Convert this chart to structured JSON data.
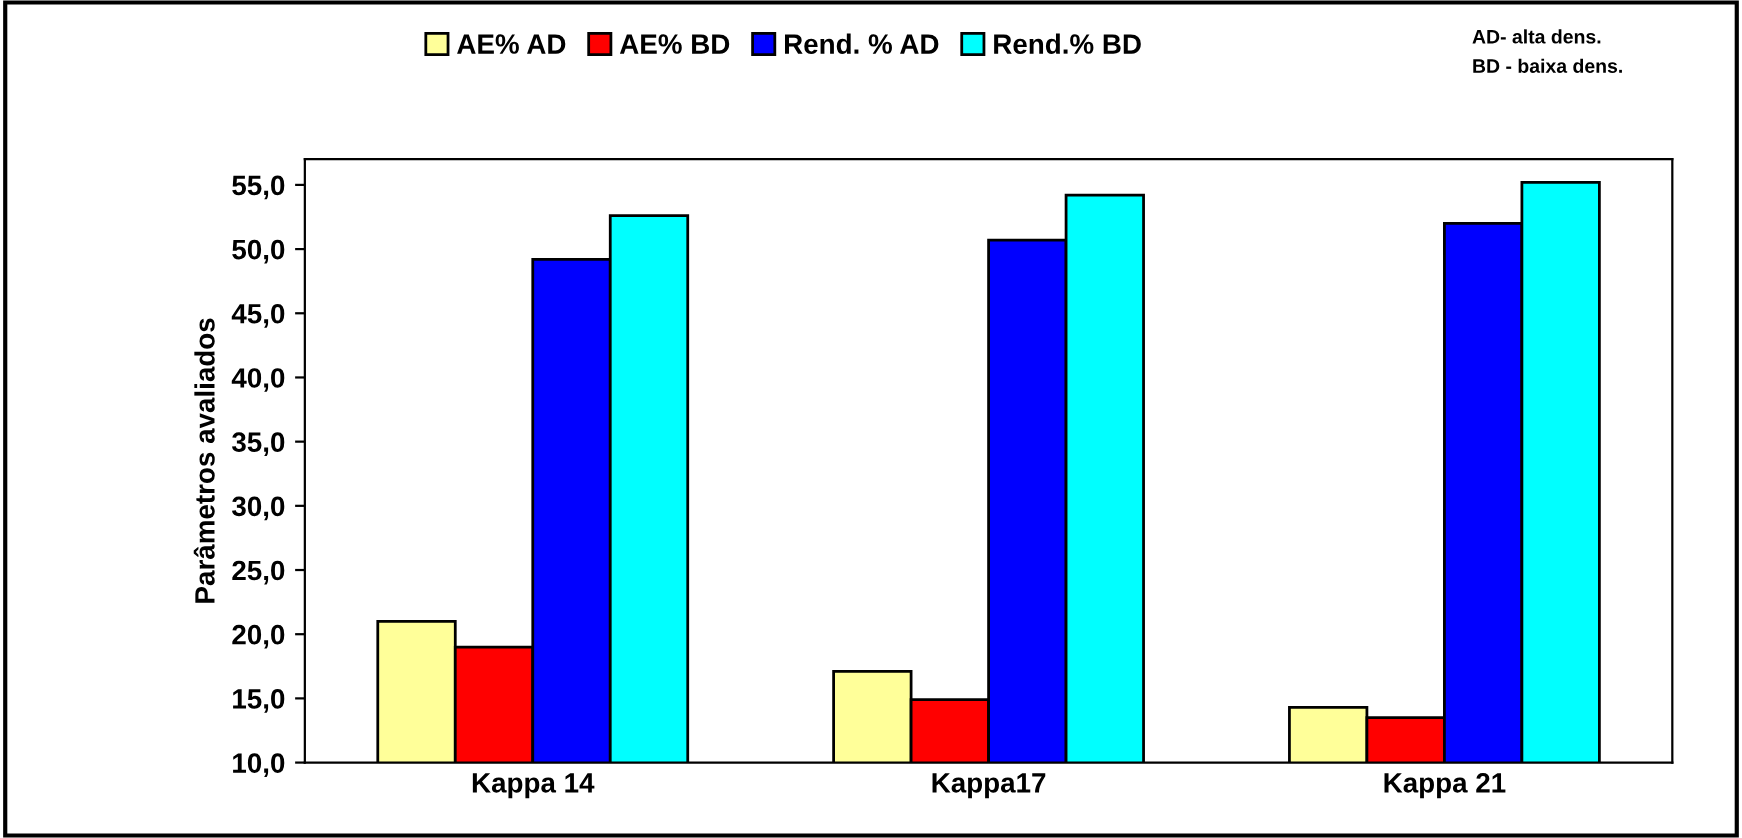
{
  "chart_data": {
    "type": "bar",
    "ylabel": "Parâmetros avaliados",
    "categories": [
      "Kappa 14",
      "Kappa17",
      "Kappa 21"
    ],
    "series": [
      {
        "name": "AE% AD",
        "color": "#ffff99",
        "values": [
          21.0,
          17.1,
          14.3
        ]
      },
      {
        "name": "AE% BD",
        "color": "#ff0000",
        "values": [
          19.0,
          14.9,
          13.5
        ]
      },
      {
        "name": "Rend. % AD",
        "color": "#0000ff",
        "values": [
          49.2,
          50.7,
          52.0
        ]
      },
      {
        "name": "Rend.% BD",
        "color": "#00ffff",
        "values": [
          52.6,
          54.2,
          55.2
        ]
      }
    ],
    "ylim": [
      10,
      57
    ],
    "yticks": [
      {
        "value": 10,
        "label": "10,0"
      },
      {
        "value": 15,
        "label": "15,0"
      },
      {
        "value": 20,
        "label": "20,0"
      },
      {
        "value": 25,
        "label": "25,0"
      },
      {
        "value": 30,
        "label": "30,0"
      },
      {
        "value": 35,
        "label": "35,0"
      },
      {
        "value": 40,
        "label": "40,0"
      },
      {
        "value": 45,
        "label": "45,0"
      },
      {
        "value": 50,
        "label": "50,0"
      },
      {
        "value": 55,
        "label": "55,0"
      }
    ],
    "legend": "top",
    "annotations": [
      "AD- alta dens.",
      "BD - baixa dens."
    ]
  }
}
